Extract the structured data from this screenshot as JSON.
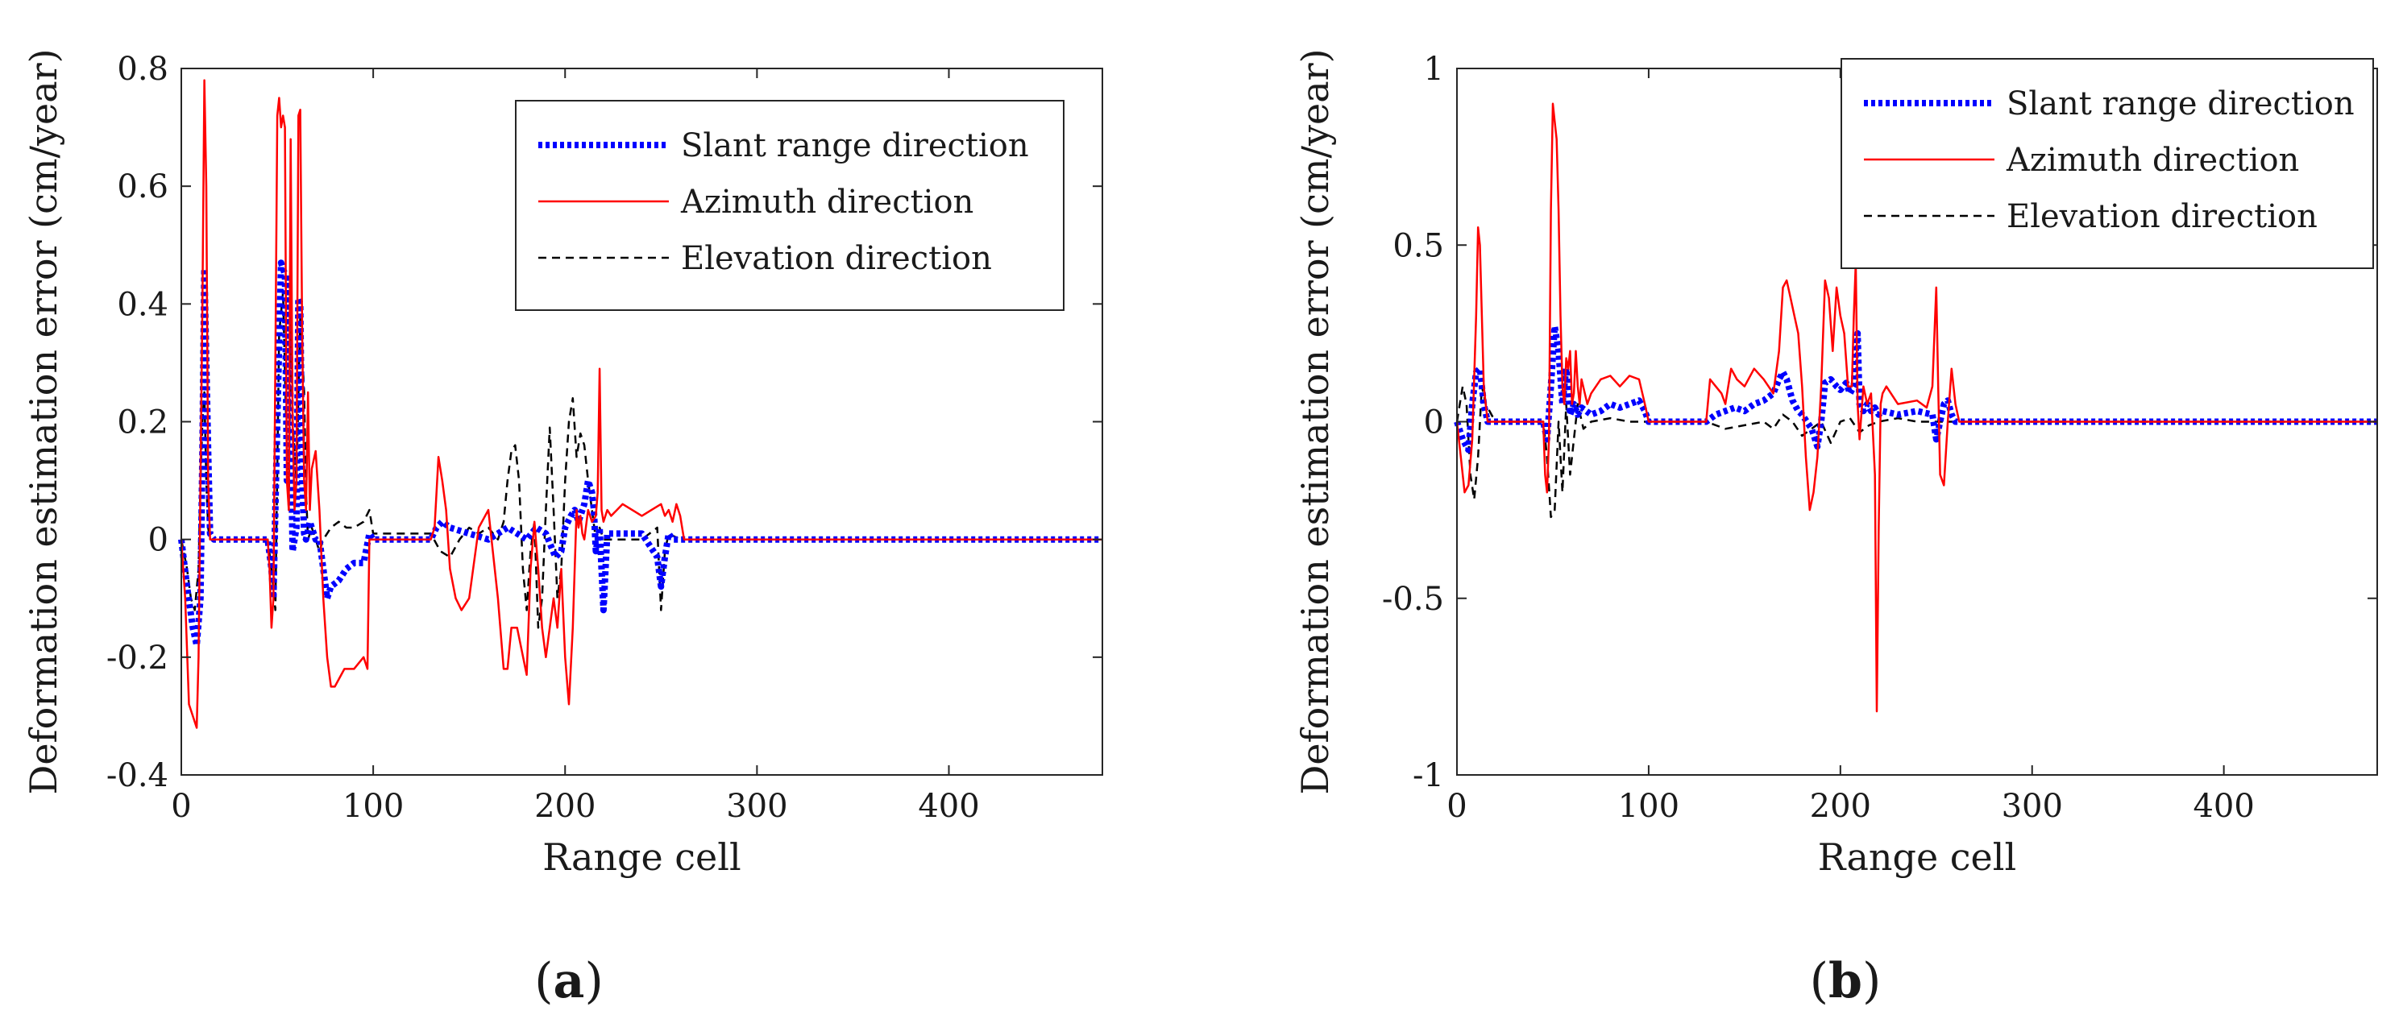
{
  "chart_data": [
    {
      "type": "line",
      "panel_label": "a",
      "xlabel": "Range cell",
      "ylabel": "Deformation estimation error (cm/year)",
      "xlim": [
        0,
        480
      ],
      "ylim": [
        -0.4,
        0.8
      ],
      "xticks": [
        0,
        100,
        200,
        300,
        400
      ],
      "xtick_labels": [
        "0",
        "100",
        "200",
        "300",
        "400"
      ],
      "yticks": [
        -0.4,
        -0.2,
        0,
        0.2,
        0.4,
        0.6,
        0.8
      ],
      "ytick_labels": [
        "-0.4",
        "-0.2",
        "0",
        "0.2",
        "0.4",
        "0.6",
        "0.8"
      ],
      "legend_position": "top-right",
      "series": [
        {
          "name": "Slant range direction",
          "color": "#0000ff",
          "style": "dotted-thick",
          "x": [
            0,
            3,
            6,
            8,
            10,
            11,
            12,
            13,
            14,
            15,
            17,
            20,
            45,
            47,
            48,
            50,
            52,
            54,
            55,
            56,
            57,
            58,
            60,
            61,
            62,
            63,
            64,
            65,
            67,
            70,
            72,
            74,
            76,
            78,
            82,
            86,
            90,
            95,
            98,
            100,
            130,
            133,
            136,
            140,
            150,
            160,
            170,
            180,
            185,
            190,
            195,
            198,
            200,
            203,
            205,
            207,
            210,
            212,
            214,
            215,
            216,
            218,
            219,
            220,
            222,
            230,
            240,
            248,
            250,
            252,
            254,
            256,
            260,
            480
          ],
          "y": [
            0,
            -0.08,
            -0.15,
            -0.18,
            -0.1,
            0.15,
            0.46,
            0.3,
            0.15,
            0.01,
            0.0,
            0.0,
            0.0,
            -0.05,
            -0.1,
            0.2,
            0.47,
            0.45,
            0.1,
            0.45,
            0.2,
            -0.02,
            0.02,
            0.41,
            0.4,
            0.1,
            0.01,
            0.0,
            0.03,
            0.0,
            0.0,
            -0.05,
            -0.1,
            -0.08,
            -0.07,
            -0.05,
            -0.04,
            -0.04,
            0.01,
            0.0,
            0.0,
            0.02,
            0.03,
            0.02,
            0.01,
            0.0,
            0.02,
            0.0,
            0.02,
            0.01,
            -0.03,
            -0.02,
            0.02,
            0.04,
            0.05,
            0.03,
            0.06,
            0.1,
            0.08,
            0.05,
            -0.02,
            0.02,
            -0.05,
            -0.12,
            0.01,
            0.01,
            0.01,
            -0.03,
            -0.08,
            -0.03,
            0.01,
            0.0,
            0.0,
            0.0
          ]
        },
        {
          "name": "Azimuth direction",
          "color": "#ff0000",
          "style": "solid",
          "x": [
            0,
            2,
            4,
            6,
            8,
            9,
            10,
            11,
            12,
            13,
            14,
            15,
            16,
            18,
            20,
            45,
            46,
            47,
            48,
            49,
            50,
            51,
            52,
            53,
            54,
            55,
            56,
            57,
            58,
            59,
            60,
            61,
            62,
            63,
            64,
            65,
            66,
            67,
            68,
            70,
            72,
            74,
            76,
            78,
            80,
            85,
            90,
            95,
            97,
            98,
            100,
            130,
            132,
            134,
            136,
            138,
            140,
            143,
            146,
            150,
            155,
            160,
            165,
            168,
            170,
            172,
            175,
            180,
            182,
            184,
            186,
            188,
            190,
            192,
            194,
            196,
            198,
            200,
            202,
            204,
            206,
            207,
            208,
            209,
            210,
            212,
            214,
            216,
            217,
            218,
            219,
            220,
            222,
            224,
            230,
            240,
            245,
            250,
            252,
            254,
            256,
            258,
            260,
            262,
            480
          ],
          "y": [
            0,
            -0.1,
            -0.28,
            -0.3,
            -0.32,
            -0.2,
            0.1,
            0.4,
            0.78,
            0.6,
            0.1,
            0.0,
            0.0,
            0.0,
            0.0,
            0.0,
            -0.05,
            -0.15,
            -0.1,
            0.3,
            0.72,
            0.75,
            0.7,
            0.72,
            0.7,
            0.1,
            0.05,
            0.68,
            0.2,
            0.05,
            0.1,
            0.72,
            0.73,
            0.35,
            0.1,
            0.05,
            0.25,
            0.05,
            0.12,
            0.15,
            0.05,
            -0.1,
            -0.2,
            -0.25,
            -0.25,
            -0.22,
            -0.22,
            -0.2,
            -0.22,
            0.0,
            0.0,
            0.0,
            0.02,
            0.14,
            0.1,
            0.05,
            -0.05,
            -0.1,
            -0.12,
            -0.1,
            0.02,
            0.05,
            -0.1,
            -0.22,
            -0.22,
            -0.15,
            -0.15,
            -0.23,
            -0.05,
            0.03,
            -0.05,
            -0.15,
            -0.2,
            -0.15,
            -0.1,
            -0.15,
            -0.05,
            -0.2,
            -0.28,
            -0.15,
            0.05,
            0.02,
            0.04,
            0.01,
            0.0,
            0.05,
            0.03,
            0.04,
            0.08,
            0.29,
            0.05,
            0.03,
            0.05,
            0.04,
            0.06,
            0.04,
            0.05,
            0.06,
            0.04,
            0.05,
            0.03,
            0.06,
            0.04,
            0.0,
            0.0
          ]
        },
        {
          "name": "Elevation direction",
          "color": "#000000",
          "style": "dashed",
          "x": [
            0,
            3,
            5,
            7,
            9,
            10,
            11,
            12,
            13,
            14,
            15,
            20,
            45,
            47,
            49,
            51,
            53,
            55,
            56,
            57,
            58,
            60,
            62,
            64,
            65,
            66,
            68,
            70,
            72,
            74,
            78,
            82,
            86,
            90,
            95,
            98,
            100,
            130,
            135,
            140,
            145,
            150,
            155,
            160,
            165,
            168,
            170,
            172,
            174,
            176,
            178,
            180,
            182,
            184,
            186,
            188,
            190,
            192,
            194,
            196,
            198,
            200,
            202,
            204,
            206,
            208,
            210,
            212,
            214,
            216,
            218,
            220,
            240,
            248,
            250,
            252,
            254,
            260,
            480
          ],
          "y": [
            0,
            -0.05,
            -0.1,
            -0.12,
            -0.05,
            0.1,
            0.2,
            0.25,
            0.1,
            0.02,
            0.0,
            0.0,
            0.0,
            -0.05,
            -0.12,
            0.35,
            0.42,
            0.15,
            0.05,
            0.38,
            0.2,
            0.1,
            0.38,
            0.25,
            0.08,
            0.0,
            0.02,
            0.0,
            -0.02,
            0.0,
            0.02,
            0.03,
            0.02,
            0.02,
            0.03,
            0.05,
            0.01,
            0.01,
            -0.02,
            -0.03,
            0.0,
            0.02,
            0.01,
            0.02,
            0.0,
            0.03,
            0.1,
            0.15,
            0.16,
            0.1,
            -0.05,
            -0.12,
            -0.02,
            0.03,
            -0.15,
            -0.1,
            0.05,
            0.19,
            0.05,
            -0.1,
            -0.05,
            0.1,
            0.2,
            0.24,
            0.14,
            0.18,
            0.16,
            0.1,
            0.05,
            0.0,
            0.02,
            0.0,
            0.0,
            0.02,
            -0.12,
            -0.02,
            0.01,
            0.0,
            0.0
          ]
        }
      ]
    },
    {
      "type": "line",
      "panel_label": "b",
      "xlabel": "Range cell",
      "ylabel": "Deformation estimation error (cm/year)",
      "xlim": [
        0,
        480
      ],
      "ylim": [
        -1,
        1
      ],
      "xticks": [
        0,
        100,
        200,
        300,
        400
      ],
      "xtick_labels": [
        "0",
        "100",
        "200",
        "300",
        "400"
      ],
      "yticks": [
        -1,
        -0.5,
        0,
        0.5,
        1
      ],
      "ytick_labels": [
        "-1",
        "-0.5",
        "0",
        "0.5",
        "1"
      ],
      "legend_position": "top-right",
      "series": [
        {
          "name": "Slant range direction",
          "color": "#0000ff",
          "style": "dotted-thick",
          "x": [
            0,
            3,
            6,
            8,
            10,
            12,
            14,
            16,
            20,
            45,
            47,
            49,
            51,
            53,
            55,
            57,
            59,
            61,
            63,
            65,
            70,
            75,
            80,
            85,
            90,
            95,
            98,
            100,
            130,
            135,
            140,
            145,
            150,
            155,
            160,
            165,
            168,
            170,
            172,
            175,
            178,
            180,
            185,
            188,
            190,
            192,
            195,
            198,
            200,
            203,
            205,
            207,
            208,
            209,
            210,
            212,
            214,
            216,
            218,
            220,
            222,
            230,
            240,
            248,
            250,
            252,
            254,
            256,
            258,
            260,
            480
          ],
          "y": [
            0,
            -0.05,
            -0.08,
            0.05,
            0.14,
            0.15,
            0.05,
            0.0,
            0.0,
            0.0,
            -0.05,
            0.1,
            0.27,
            0.2,
            0.05,
            0.15,
            0.02,
            0.05,
            0.02,
            0.04,
            0.02,
            0.03,
            0.05,
            0.04,
            0.05,
            0.06,
            0.03,
            0.0,
            0.0,
            0.02,
            0.03,
            0.04,
            0.03,
            0.05,
            0.06,
            0.08,
            0.12,
            0.14,
            0.12,
            0.06,
            0.03,
            0.02,
            -0.02,
            -0.07,
            0.0,
            0.11,
            0.12,
            0.1,
            0.09,
            0.11,
            0.08,
            0.1,
            0.2,
            0.25,
            0.05,
            0.03,
            0.05,
            0.03,
            0.04,
            0.02,
            0.03,
            0.02,
            0.03,
            0.02,
            -0.05,
            0.0,
            0.05,
            0.06,
            0.02,
            0.0,
            0.0
          ]
        },
        {
          "name": "Azimuth direction",
          "color": "#ff0000",
          "style": "solid",
          "x": [
            0,
            2,
            4,
            6,
            8,
            10,
            11,
            12,
            13,
            14,
            15,
            16,
            20,
            45,
            46,
            47,
            48,
            49,
            50,
            51,
            52,
            53,
            54,
            55,
            56,
            57,
            58,
            59,
            60,
            61,
            62,
            63,
            64,
            65,
            68,
            70,
            75,
            80,
            85,
            90,
            95,
            98,
            100,
            130,
            132,
            135,
            138,
            140,
            143,
            146,
            150,
            155,
            160,
            165,
            168,
            170,
            172,
            174,
            176,
            178,
            180,
            182,
            184,
            186,
            188,
            190,
            192,
            194,
            196,
            198,
            200,
            202,
            204,
            206,
            207,
            208,
            209,
            210,
            212,
            214,
            216,
            218,
            219,
            220,
            221,
            222,
            224,
            230,
            240,
            245,
            248,
            250,
            251,
            252,
            254,
            256,
            258,
            260,
            262,
            480
          ],
          "y": [
            0,
            -0.1,
            -0.2,
            -0.18,
            -0.05,
            0.3,
            0.55,
            0.5,
            0.3,
            0.1,
            0.05,
            0.0,
            0.0,
            0.0,
            -0.15,
            -0.2,
            -0.05,
            0.6,
            0.9,
            0.85,
            0.8,
            0.6,
            0.3,
            0.1,
            0.05,
            0.18,
            0.15,
            0.2,
            0.05,
            0.08,
            0.2,
            0.1,
            0.05,
            0.12,
            0.05,
            0.08,
            0.12,
            0.13,
            0.1,
            0.13,
            0.12,
            0.05,
            0.0,
            0.0,
            0.12,
            0.1,
            0.08,
            0.05,
            0.15,
            0.12,
            0.1,
            0.15,
            0.12,
            0.08,
            0.2,
            0.38,
            0.4,
            0.35,
            0.3,
            0.25,
            0.1,
            -0.1,
            -0.25,
            -0.2,
            -0.1,
            0.1,
            0.4,
            0.35,
            0.2,
            0.38,
            0.3,
            0.25,
            0.1,
            0.1,
            0.3,
            0.45,
            0.05,
            -0.05,
            0.1,
            0.05,
            0.08,
            -0.15,
            -0.82,
            -0.3,
            0.05,
            0.08,
            0.1,
            0.05,
            0.06,
            0.04,
            0.1,
            0.38,
            0.1,
            -0.15,
            -0.18,
            0.0,
            0.15,
            0.05,
            0.0,
            0.0
          ]
        },
        {
          "name": "Elevation direction",
          "color": "#000000",
          "style": "dashed",
          "x": [
            0,
            3,
            5,
            7,
            9,
            11,
            13,
            15,
            20,
            45,
            47,
            49,
            51,
            53,
            55,
            57,
            59,
            61,
            63,
            66,
            70,
            80,
            90,
            100,
            130,
            140,
            150,
            160,
            165,
            170,
            175,
            180,
            185,
            190,
            195,
            200,
            205,
            210,
            215,
            220,
            230,
            240,
            250,
            260,
            480
          ],
          "y": [
            0,
            0.1,
            0.05,
            -0.15,
            -0.22,
            -0.1,
            0.1,
            0.05,
            0.0,
            0.0,
            -0.1,
            -0.27,
            -0.25,
            0.0,
            -0.2,
            0.05,
            -0.15,
            -0.05,
            0.05,
            -0.02,
            0.0,
            0.01,
            0.0,
            0.0,
            0.0,
            -0.02,
            -0.01,
            0.0,
            -0.02,
            0.02,
            0.0,
            -0.04,
            -0.02,
            0.0,
            -0.06,
            0.0,
            0.01,
            -0.03,
            -0.01,
            0.0,
            0.01,
            0.0,
            0.0,
            0.0,
            0.0
          ]
        }
      ]
    }
  ]
}
